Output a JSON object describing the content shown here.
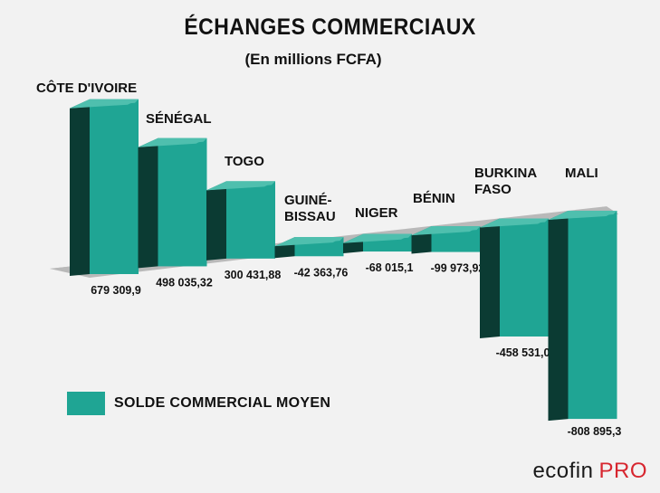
{
  "chart_data": {
    "type": "bar",
    "title": "ÉCHANGES COMMERCIAUX",
    "subtitle": "(En millions FCFA)",
    "categories": [
      "CÔTE D'IVOIRE",
      "SÉNÉGAL",
      "TOGO",
      "GUINÉ-\nBISSAU",
      "NIGER",
      "BÉNIN",
      "BURKINA\nFASO",
      "MALI"
    ],
    "value_labels": [
      "679 309,9",
      "498 035,32",
      "300 431,88",
      "-42 363,76",
      "-68 015,1",
      "-99 973,92",
      "-458 531,08",
      "-808 895,3"
    ],
    "series": [
      {
        "name": "SOLDE COMMERCIAL MOYEN",
        "values": [
          679309.9,
          498035.32,
          300431.88,
          -42363.76,
          -68015.1,
          -99973.92,
          -458531.08,
          -808895.3
        ]
      }
    ],
    "colors": {
      "front": "#1fa594",
      "top": "#4fbfae",
      "side": "#0b3b33",
      "floor": "#b9b9b9"
    },
    "legend_position": "bottom-left",
    "grid": false
  },
  "brand": {
    "part1": "ecofin",
    "part2": "PRO"
  }
}
